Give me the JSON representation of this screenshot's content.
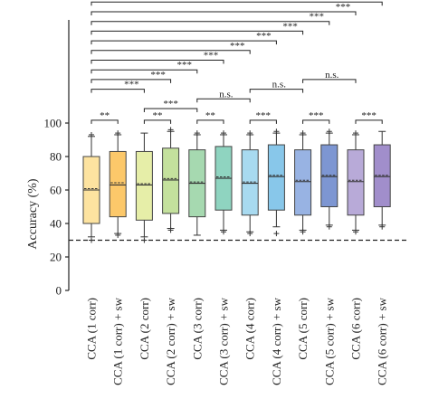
{
  "chart_data": {
    "type": "box",
    "ylabel": "Accuracy (%)",
    "ylim": [
      0,
      100
    ],
    "yticks": [
      0,
      20,
      40,
      60,
      80,
      100
    ],
    "chance_level": 30,
    "categories": [
      "CCA (1 corr)",
      "CCA (1 corr) + sw",
      "CCA (2 corr)",
      "CCA (2 corr) + sw",
      "CCA (3 corr)",
      "CCA (3 corr) + sw",
      "CCA (4 corr)",
      "CCA (4 corr) + sw",
      "CCA (5 corr)",
      "CCA (5 corr) + sw",
      "CCA (6 corr)",
      "CCA (6 corr) + sw"
    ],
    "colors": [
      "#fde3a0",
      "#fcc86a",
      "#e6eea8",
      "#c4e19d",
      "#a6d9b0",
      "#8fd4c0",
      "#a8daf0",
      "#88c7ea",
      "#98b3e3",
      "#7d96d2",
      "#b8aad8",
      "#a18ecb"
    ],
    "boxes": [
      {
        "whisker_low": 32,
        "q1": 40,
        "median": 60,
        "mean": 60,
        "q3": 80,
        "whisker_high": 92,
        "outliers_low": [
          30
        ],
        "outliers_high": [
          93
        ]
      },
      {
        "whisker_low": 34,
        "q1": 44,
        "median": 63,
        "mean": 63.5,
        "q3": 83,
        "whisker_high": 93,
        "outliers_low": [
          33
        ],
        "outliers_high": [
          94
        ]
      },
      {
        "whisker_low": 32,
        "q1": 42,
        "median": 63,
        "mean": 63,
        "q3": 83,
        "whisker_high": 94,
        "outliers_low": [
          30
        ],
        "outliers_high": []
      },
      {
        "whisker_low": 37,
        "q1": 46,
        "median": 66,
        "mean": 66,
        "q3": 85,
        "whisker_high": 95,
        "outliers_low": [
          36
        ],
        "outliers_high": [
          96
        ]
      },
      {
        "whisker_low": 33,
        "q1": 44,
        "median": 64,
        "mean": 64,
        "q3": 84,
        "whisker_high": 93,
        "outliers_low": [],
        "outliers_high": [
          94
        ]
      },
      {
        "whisker_low": 36,
        "q1": 48,
        "median": 67,
        "mean": 67,
        "q3": 86,
        "whisker_high": 93,
        "outliers_low": [
          35
        ],
        "outliers_high": [
          94
        ]
      },
      {
        "whisker_low": 35,
        "q1": 45,
        "median": 64,
        "mean": 64,
        "q3": 84,
        "whisker_high": 93,
        "outliers_low": [
          34
        ],
        "outliers_high": [
          94
        ]
      },
      {
        "whisker_low": 38,
        "q1": 48,
        "median": 68,
        "mean": 68,
        "q3": 87,
        "whisker_high": 94,
        "outliers_low": [
          34
        ],
        "outliers_high": [
          95
        ]
      },
      {
        "whisker_low": 36,
        "q1": 45,
        "median": 65,
        "mean": 65,
        "q3": 84,
        "whisker_high": 93,
        "outliers_low": [
          35
        ],
        "outliers_high": [
          94
        ]
      },
      {
        "whisker_low": 39,
        "q1": 50,
        "median": 68,
        "mean": 68,
        "q3": 87,
        "whisker_high": 94,
        "outliers_low": [
          38
        ],
        "outliers_high": [
          95
        ]
      },
      {
        "whisker_low": 36,
        "q1": 45,
        "median": 65,
        "mean": 65,
        "q3": 84,
        "whisker_high": 93,
        "outliers_low": [
          35
        ],
        "outliers_high": [
          94
        ]
      },
      {
        "whisker_low": 39,
        "q1": 50,
        "median": 68,
        "mean": 68,
        "q3": 87,
        "whisker_high": 95,
        "outliers_low": [
          38
        ],
        "outliers_high": []
      }
    ],
    "comparisons": [
      {
        "from": 0,
        "to": 11,
        "label": "***"
      },
      {
        "from": 0,
        "to": 10,
        "label": "***"
      },
      {
        "from": 0,
        "to": 9,
        "label": "***"
      },
      {
        "from": 0,
        "to": 8,
        "label": "***"
      },
      {
        "from": 0,
        "to": 7,
        "label": "***"
      },
      {
        "from": 0,
        "to": 6,
        "label": "***"
      },
      {
        "from": 0,
        "to": 5,
        "label": "***"
      },
      {
        "from": 0,
        "to": 4,
        "label": "***"
      },
      {
        "from": 0,
        "to": 3,
        "label": "***"
      },
      {
        "from": 0,
        "to": 2,
        "label": "***"
      },
      {
        "from": 0,
        "to": 1,
        "label": "**"
      },
      {
        "from": 2,
        "to": 3,
        "label": "**"
      },
      {
        "from": 2,
        "to": 4,
        "label": "***"
      },
      {
        "from": 4,
        "to": 5,
        "label": "**"
      },
      {
        "from": 4,
        "to": 6,
        "label": "n.s."
      },
      {
        "from": 6,
        "to": 7,
        "label": "***"
      },
      {
        "from": 6,
        "to": 8,
        "label": "n.s."
      },
      {
        "from": 8,
        "to": 9,
        "label": "***"
      },
      {
        "from": 8,
        "to": 10,
        "label": "n.s."
      },
      {
        "from": 10,
        "to": 11,
        "label": "***"
      }
    ],
    "grid": false,
    "legend": "none"
  }
}
